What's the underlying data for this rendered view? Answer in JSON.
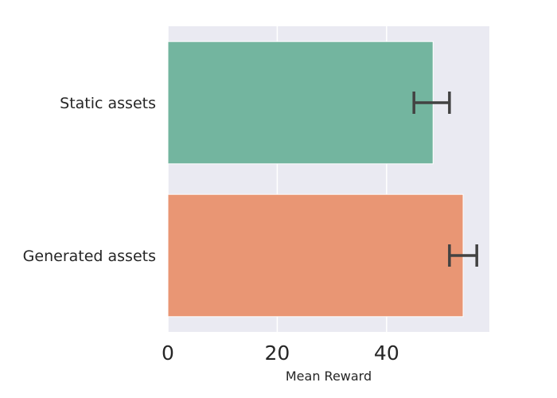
{
  "chart_data": {
    "type": "bar",
    "orientation": "horizontal",
    "categories": [
      "Static assets",
      "Generated assets"
    ],
    "values": [
      48.5,
      54.0
    ],
    "error_bars": [
      [
        45.0,
        51.5
      ],
      [
        51.5,
        56.5
      ]
    ],
    "colors": [
      "#73b59f",
      "#e99674"
    ],
    "title": "",
    "xlabel": "Mean Reward",
    "ylabel": "",
    "xlim": [
      0,
      58.8
    ],
    "xticks": [
      0,
      20,
      40
    ],
    "grid": true,
    "background": "#eaeaf2",
    "errorbar_color": "#424242"
  }
}
